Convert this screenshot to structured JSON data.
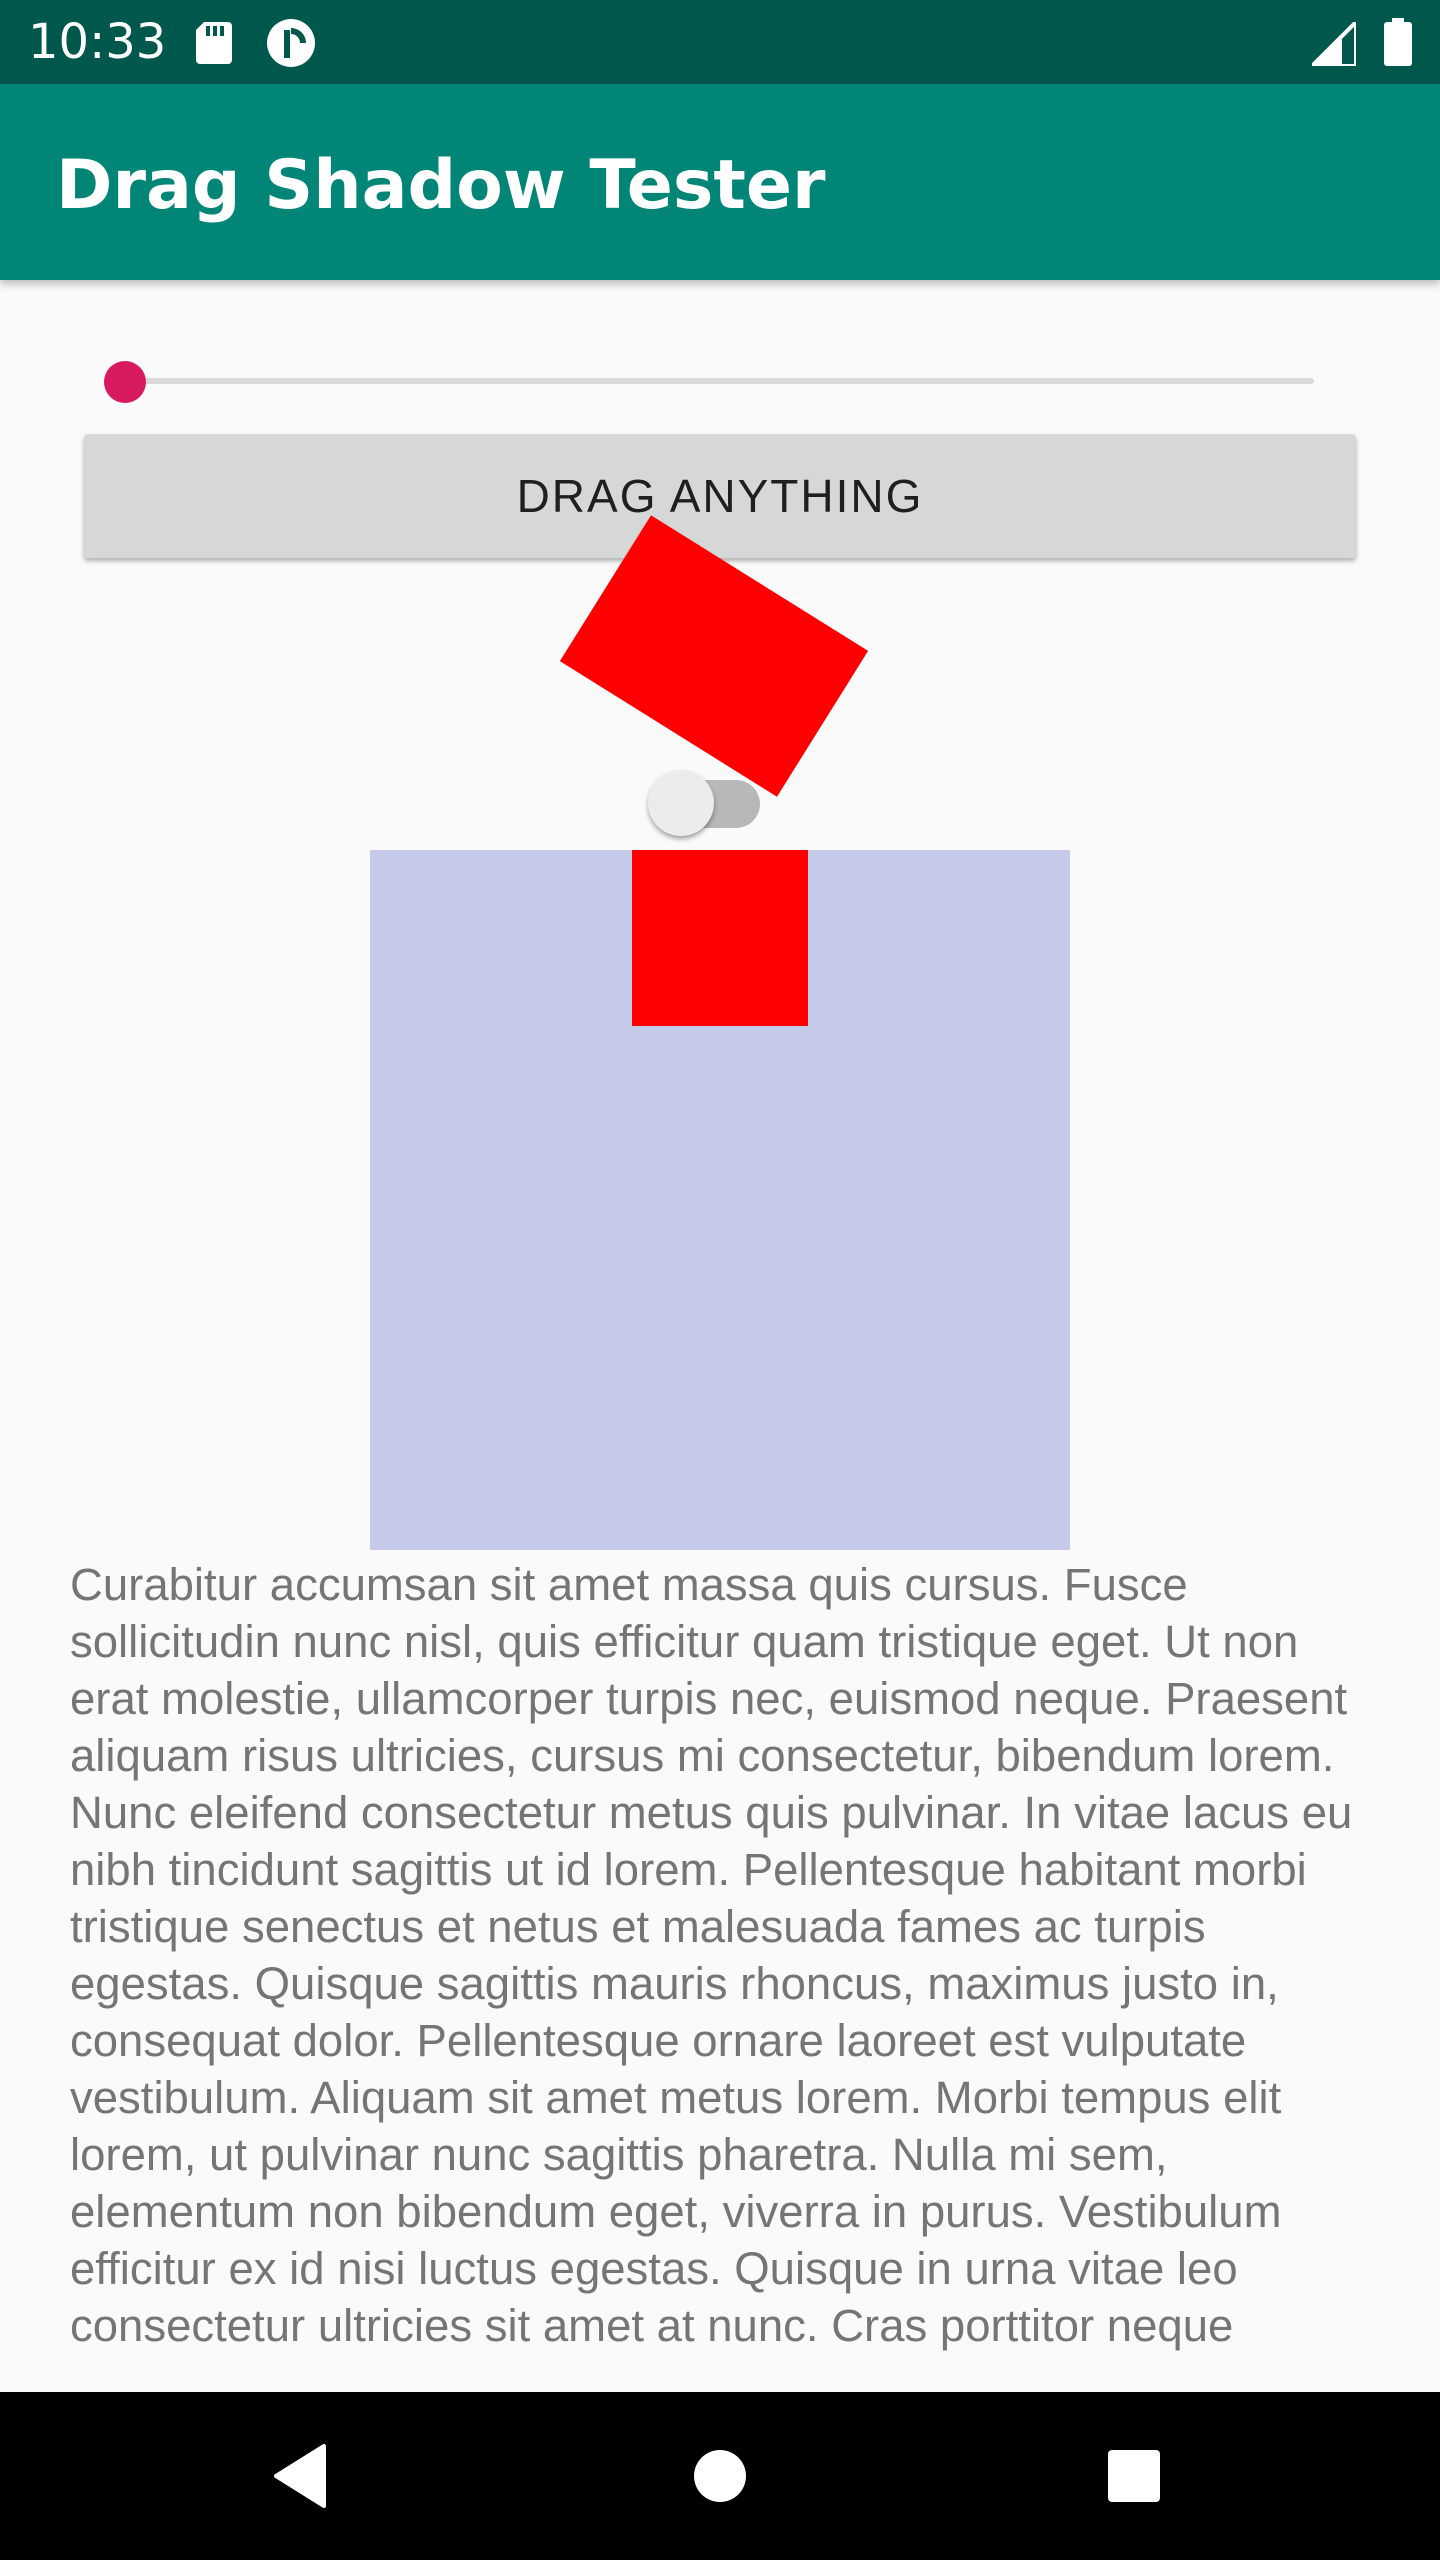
{
  "status_bar": {
    "time": "10:33",
    "icons": [
      "sd-card-icon",
      "pocket-casts-icon",
      "signal-icon",
      "battery-icon"
    ]
  },
  "app_bar": {
    "title": "Drag Shadow Tester"
  },
  "seekbar": {
    "value_fraction": 0.0
  },
  "drag_button": {
    "label": "DRAG ANYTHING"
  },
  "toggle": {
    "checked": false
  },
  "body_text": "Curabitur accumsan sit amet massa quis cursus. Fusce sollicitudin nunc nisl, quis efficitur quam tristique eget. Ut non erat molestie, ullamcorper turpis nec, euismod neque. Praesent aliquam risus ultricies, cursus mi consectetur, bibendum lorem. Nunc eleifend consectetur metus quis pulvinar. In vitae lacus eu nibh tincidunt sagittis ut id lorem. Pellentesque habitant morbi tristique senectus et netus et malesuada fames ac turpis egestas. Quisque sagittis mauris rhoncus, maximus justo in, consequat dolor. Pellentesque ornare laoreet est vulputate vestibulum. Aliquam sit amet metus lorem. Morbi tempus elit lorem, ut pulvinar nunc sagittis pharetra. Nulla mi sem, elementum non bibendum eget, viverra in purus. Vestibulum efficitur ex id nisi luctus egestas. Quisque in urna vitae leo consectetur ultricies sit amet at nunc. Cras porttitor neque",
  "nav_bar": {
    "buttons": [
      "back-icon",
      "home-icon",
      "overview-icon"
    ]
  },
  "colors": {
    "status_bar": "#00574b",
    "app_bar": "#008577",
    "accent": "#d81b60",
    "shape_red": "#ff0000",
    "drop_target": "#c5cae9",
    "body_text": "#757575"
  }
}
